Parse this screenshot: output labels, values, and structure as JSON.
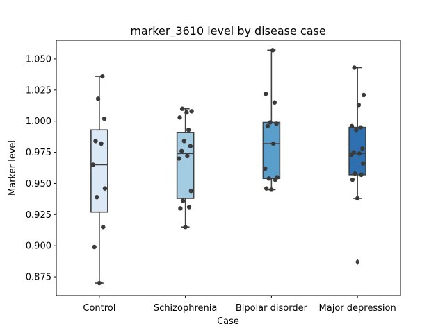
{
  "chart_data": {
    "type": "box",
    "title": "marker_3610 level by disease case",
    "xlabel": "Case",
    "ylabel": "Marker level",
    "ylim": [
      0.86,
      1.065
    ],
    "yticks": [
      "0.875",
      "0.900",
      "0.925",
      "0.950",
      "0.975",
      "1.000",
      "1.025",
      "1.050"
    ],
    "grid": false,
    "legend": "none",
    "colors": {
      "Control": "#dbe9f6",
      "Schizophrenia": "#a3cce3",
      "Bipolar disorder": "#5a9ecc",
      "Major depression": "#2f71b0",
      "box_edge": "#3f3f3f",
      "point": "#3a3a3a"
    },
    "categories": [
      "Control",
      "Schizophrenia",
      "Bipolar disorder",
      "Major depression"
    ],
    "series": [
      {
        "category": "Control",
        "whisker_low": 0.87,
        "q1": 0.927,
        "median": 0.965,
        "q3": 0.993,
        "whisker_high": 1.036,
        "outliers": [],
        "points": [
          0.87,
          0.899,
          0.915,
          0.939,
          0.946,
          0.965,
          0.982,
          0.984,
          1.002,
          1.018,
          1.036
        ]
      },
      {
        "category": "Schizophrenia",
        "whisker_low": 0.915,
        "q1": 0.938,
        "median": 0.974,
        "q3": 0.991,
        "whisker_high": 1.01,
        "outliers": [],
        "points": [
          0.915,
          0.93,
          0.931,
          0.936,
          0.944,
          0.97,
          0.972,
          0.976,
          0.98,
          0.984,
          0.993,
          1.003,
          1.007,
          1.008,
          1.01
        ]
      },
      {
        "category": "Bipolar disorder",
        "whisker_low": 0.945,
        "q1": 0.954,
        "median": 0.982,
        "q3": 0.999,
        "whisker_high": 1.057,
        "outliers": [],
        "points": [
          0.945,
          0.946,
          0.953,
          0.954,
          0.955,
          0.962,
          0.982,
          0.996,
          0.998,
          0.999,
          1.015,
          1.022,
          1.057
        ]
      },
      {
        "category": "Major depression",
        "whisker_low": 0.938,
        "q1": 0.957,
        "median": 0.974,
        "q3": 0.995,
        "whisker_high": 1.043,
        "outliers": [
          0.887
        ],
        "points": [
          0.938,
          0.953,
          0.957,
          0.958,
          0.966,
          0.973,
          0.974,
          0.975,
          0.978,
          0.993,
          0.995,
          0.996,
          1.013,
          1.021,
          1.043
        ]
      }
    ]
  }
}
